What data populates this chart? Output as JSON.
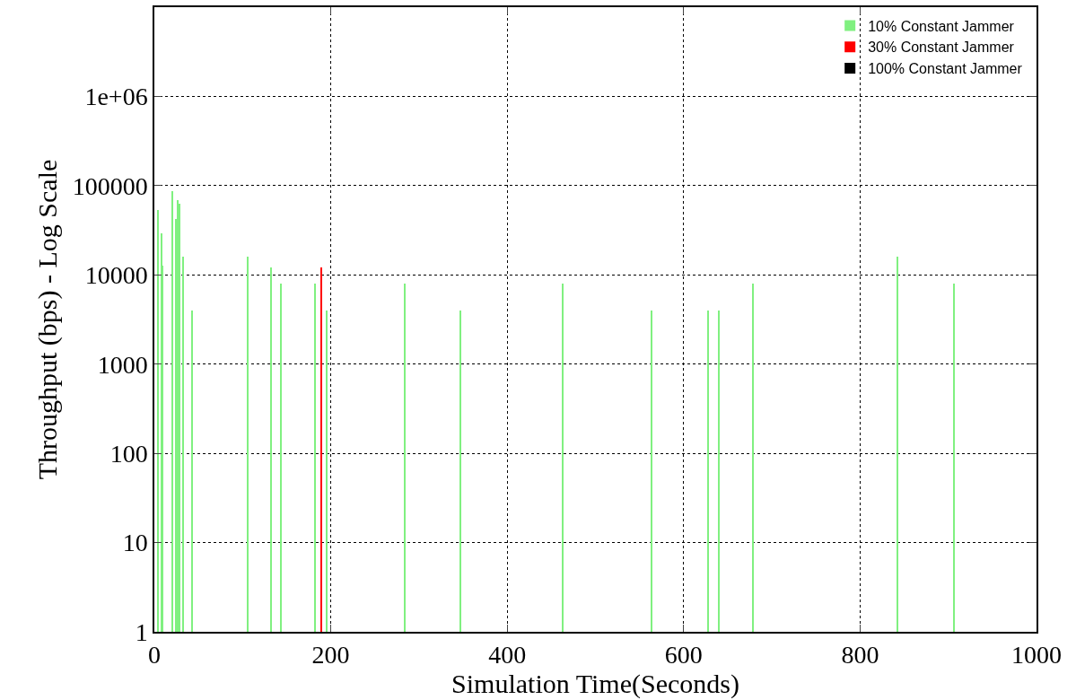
{
  "chart_data": {
    "type": "bar",
    "xlabel": "Simulation Time(Seconds)",
    "ylabel": "Throughput (bps) - Log Scale",
    "log": "y",
    "grid": true,
    "legend": "top right",
    "xlim": [
      0,
      1000
    ],
    "xticks": [
      0,
      200,
      400,
      600,
      800,
      1000
    ],
    "ylim": [
      1,
      10000000
    ],
    "yticks": [
      1,
      10,
      100,
      1000,
      10000,
      100000,
      {
        "value": 1000000,
        "label": "1e+06"
      }
    ],
    "series": [
      {
        "name": "10% Constant Jammer",
        "color": "#80f080",
        "x": [
          4,
          8,
          9,
          21,
          25,
          27,
          29,
          33,
          43,
          106,
          132,
          144,
          182,
          195,
          284,
          347,
          463,
          564,
          628,
          640,
          679,
          843,
          907
        ],
        "values": [
          53000,
          29000,
          12600,
          87000,
          42000,
          69000,
          63000,
          16000,
          4000,
          16000,
          12000,
          8000,
          8000,
          4000,
          8000,
          4000,
          8000,
          4000,
          4000,
          4000,
          8000,
          16000,
          8000
        ]
      },
      {
        "name": "30% Constant Jammer",
        "color": "#ff0000",
        "x": [
          189
        ],
        "values": [
          12000
        ]
      },
      {
        "name": "100% Constant Jammer",
        "color": "#000000"
      }
    ]
  }
}
